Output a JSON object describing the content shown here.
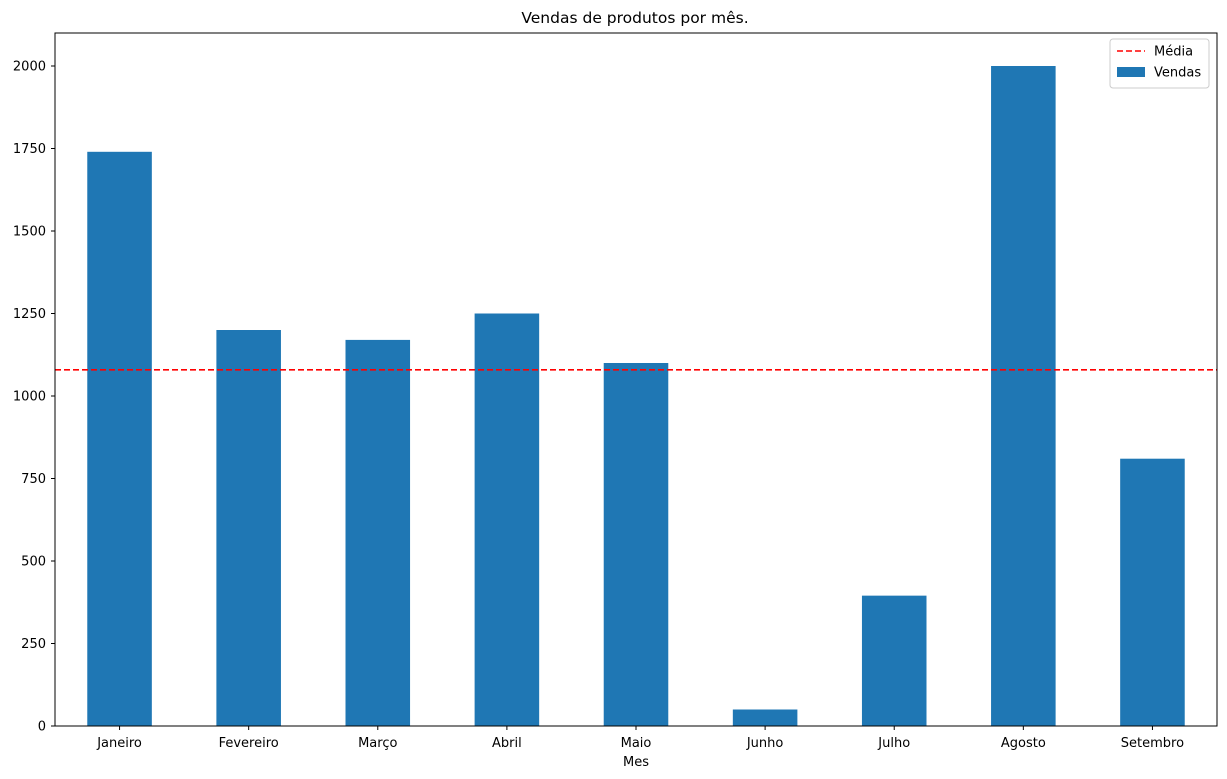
{
  "chart_data": {
    "type": "bar",
    "title": "Vendas de produtos por mês.",
    "xlabel": "Mes",
    "ylabel": "",
    "categories": [
      "Janeiro",
      "Fevereiro",
      "Março",
      "Abril",
      "Maio",
      "Junho",
      "Julho",
      "Agosto",
      "Setembro"
    ],
    "series": [
      {
        "name": "Vendas",
        "values": [
          1740,
          1200,
          1170,
          1250,
          1100,
          50,
          395,
          2000,
          810
        ],
        "color": "#1f77b4"
      }
    ],
    "reference_lines": [
      {
        "name": "Média",
        "value": 1079.4,
        "color": "#ff0000",
        "style": "dashed"
      }
    ],
    "ylim": [
      0,
      2100
    ],
    "yticks": [
      0,
      250,
      500,
      750,
      1000,
      1250,
      1500,
      1750,
      2000
    ],
    "grid": false,
    "legend_position": "top-right"
  }
}
